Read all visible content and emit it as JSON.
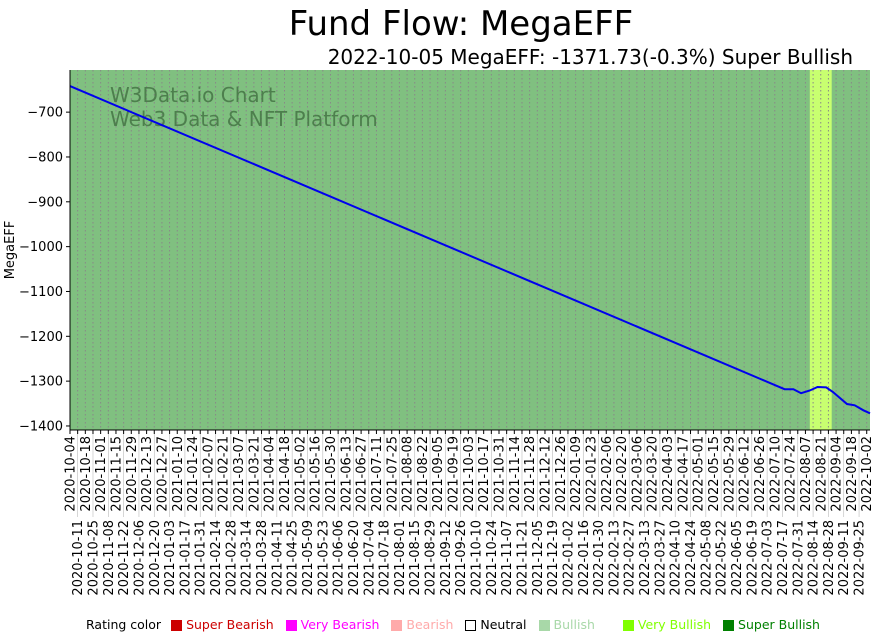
{
  "title": "Fund Flow: MegaEFF",
  "subtitle": "2022-10-05 MegaEFF: -1371.73(-0.3%) Super Bullish",
  "watermark": [
    "W3Data.io Chart",
    "Web3 Data & NFT Platform"
  ],
  "legend": {
    "label": "Rating color",
    "items": [
      {
        "label": "Super Bearish",
        "color": "#cc0000"
      },
      {
        "label": "Very Bearish",
        "color": "#ff00ff"
      },
      {
        "label": "Bearish",
        "color": "#ffaaaa"
      },
      {
        "label": "Neutral",
        "color": "#ffffff"
      },
      {
        "label": "Bullish",
        "color": "#a8d8a8"
      },
      {
        "label": "Very Bullish",
        "color": "#80ff00"
      },
      {
        "label": "Super Bullish",
        "color": "#008000"
      }
    ]
  },
  "chart_data": {
    "type": "line",
    "ylabel": "MegaEFF",
    "xlabel": "",
    "x_unit": "days since 2020-10-04",
    "xlim": [
      0,
      731
    ],
    "ylim": [
      -1409,
      -606
    ],
    "yticks": [
      -700,
      -800,
      -900,
      -1000,
      -1100,
      -1200,
      -1300,
      -1400
    ],
    "background_color": "#80c080",
    "highlight_bands": [
      {
        "from": 676,
        "to": 696,
        "color": "#c8ff70",
        "rating": "Very Bullish"
      }
    ],
    "series": [
      {
        "name": "MegaEFF",
        "color": "#0000ee",
        "points": [
          [
            0,
            -642
          ],
          [
            653,
            -1318
          ],
          [
            661,
            -1318
          ],
          [
            668,
            -1327
          ],
          [
            676,
            -1321
          ],
          [
            683,
            -1313
          ],
          [
            691,
            -1314
          ],
          [
            697,
            -1324
          ],
          [
            710,
            -1351
          ],
          [
            717,
            -1354
          ],
          [
            725,
            -1365
          ],
          [
            731,
            -1371.73
          ]
        ]
      }
    ],
    "xtick_labels": [
      "2020-10-04",
      "2020-10-11",
      "2020-10-18",
      "2020-10-25",
      "2020-11-01",
      "2020-11-08",
      "2020-11-15",
      "2020-11-22",
      "2020-11-29",
      "2020-12-06",
      "2020-12-13",
      "2020-12-20",
      "2020-12-27",
      "2021-01-03",
      "2021-01-10",
      "2021-01-17",
      "2021-01-24",
      "2021-01-31",
      "2021-02-07",
      "2021-02-14",
      "2021-02-21",
      "2021-02-28",
      "2021-03-07",
      "2021-03-14",
      "2021-03-21",
      "2021-03-28",
      "2021-04-04",
      "2021-04-11",
      "2021-04-18",
      "2021-04-25",
      "2021-05-02",
      "2021-05-09",
      "2021-05-16",
      "2021-05-23",
      "2021-05-30",
      "2021-06-06",
      "2021-06-13",
      "2021-06-20",
      "2021-06-27",
      "2021-07-04",
      "2021-07-11",
      "2021-07-18",
      "2021-07-25",
      "2021-08-01",
      "2021-08-08",
      "2021-08-15",
      "2021-08-22",
      "2021-08-29",
      "2021-09-05",
      "2021-09-12",
      "2021-09-19",
      "2021-09-26",
      "2021-10-03",
      "2021-10-10",
      "2021-10-17",
      "2021-10-24",
      "2021-10-31",
      "2021-11-07",
      "2021-11-14",
      "2021-11-21",
      "2021-11-28",
      "2021-12-05",
      "2021-12-12",
      "2021-12-19",
      "2021-12-26",
      "2022-01-02",
      "2022-01-09",
      "2022-01-16",
      "2022-01-23",
      "2022-01-30",
      "2022-02-06",
      "2022-02-13",
      "2022-02-20",
      "2022-02-27",
      "2022-03-06",
      "2022-03-13",
      "2022-03-20",
      "2022-03-27",
      "2022-04-03",
      "2022-04-10",
      "2022-04-17",
      "2022-04-24",
      "2022-05-01",
      "2022-05-08",
      "2022-05-15",
      "2022-05-22",
      "2022-05-29",
      "2022-06-05",
      "2022-06-12",
      "2022-06-19",
      "2022-06-26",
      "2022-07-03",
      "2022-07-10",
      "2022-07-17",
      "2022-07-24",
      "2022-07-31",
      "2022-08-07",
      "2022-08-14",
      "2022-08-21",
      "2022-08-28",
      "2022-09-04",
      "2022-09-11",
      "2022-09-18",
      "2022-09-25",
      "2022-10-02"
    ]
  }
}
